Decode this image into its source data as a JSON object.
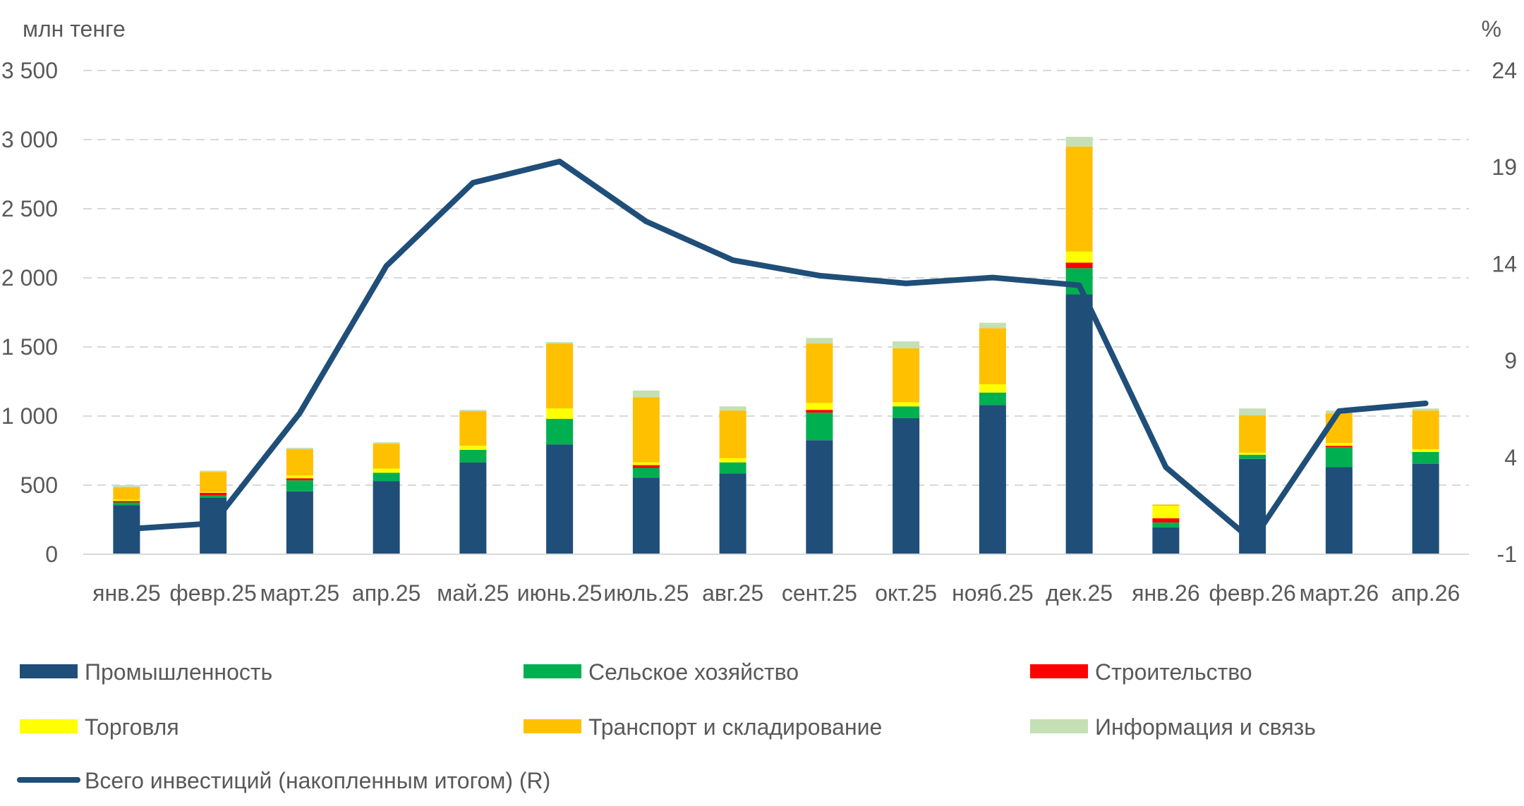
{
  "chart_data": {
    "type": "bar",
    "stacked": true,
    "ylabel": "млн тенге",
    "y2label": "%",
    "ylim": [
      0,
      3500
    ],
    "y2lim": [
      -1,
      24
    ],
    "yticks": [
      "3 500",
      "3 000",
      "2 500",
      "2 000",
      "1 500",
      "1 000",
      "500",
      "0"
    ],
    "y2ticks": [
      "24",
      "19",
      "14",
      "9",
      "4",
      "-1"
    ],
    "grid": true,
    "legend_position": "bottom",
    "categories": [
      "янв.25",
      "февр.25",
      "март.25",
      "апр.25",
      "май.25",
      "июнь.25",
      "июль.25",
      "авг.25",
      "сент.25",
      "окт.25",
      "нояб.25",
      "дек.25",
      "янв.26",
      "февр.26",
      "март.26",
      "апр.26"
    ],
    "series": [
      {
        "name": "Промышленность",
        "color": "#1F4E79",
        "values": [
          355,
          410,
          455,
          530,
          665,
          795,
          555,
          585,
          825,
          985,
          1080,
          1880,
          195,
          690,
          630,
          655
        ]
      },
      {
        "name": "Сельское хозяйство",
        "color": "#00B050",
        "values": [
          20,
          15,
          80,
          60,
          90,
          185,
          70,
          80,
          200,
          85,
          90,
          190,
          35,
          30,
          145,
          85
        ]
      },
      {
        "name": "Строительство",
        "color": "#FF0000",
        "values": [
          10,
          20,
          15,
          0,
          0,
          0,
          20,
          0,
          20,
          0,
          0,
          40,
          30,
          0,
          10,
          0
        ]
      },
      {
        "name": "Торговля",
        "color": "#FFFF00",
        "values": [
          10,
          5,
          20,
          30,
          30,
          75,
          20,
          30,
          50,
          30,
          60,
          80,
          90,
          15,
          20,
          20
        ]
      },
      {
        "name": "Транспорт и складирование",
        "color": "#FFC000",
        "values": [
          90,
          145,
          190,
          180,
          250,
          470,
          470,
          345,
          430,
          390,
          405,
          760,
          10,
          270,
          215,
          280
        ]
      },
      {
        "name": "Информация и связь",
        "color": "#C5E0B4",
        "values": [
          15,
          10,
          10,
          10,
          10,
          10,
          50,
          30,
          40,
          50,
          40,
          70,
          0,
          50,
          20,
          15
        ]
      }
    ],
    "line": {
      "name": "Всего инвестиций (накопленным итогом) (R)",
      "color": "#1F4E79",
      "values": [
        0.3,
        0.6,
        6.3,
        13.9,
        18.2,
        19.3,
        16.2,
        14.2,
        13.4,
        13.0,
        13.3,
        12.9,
        3.5,
        -0.3,
        6.4,
        6.8
      ]
    }
  }
}
